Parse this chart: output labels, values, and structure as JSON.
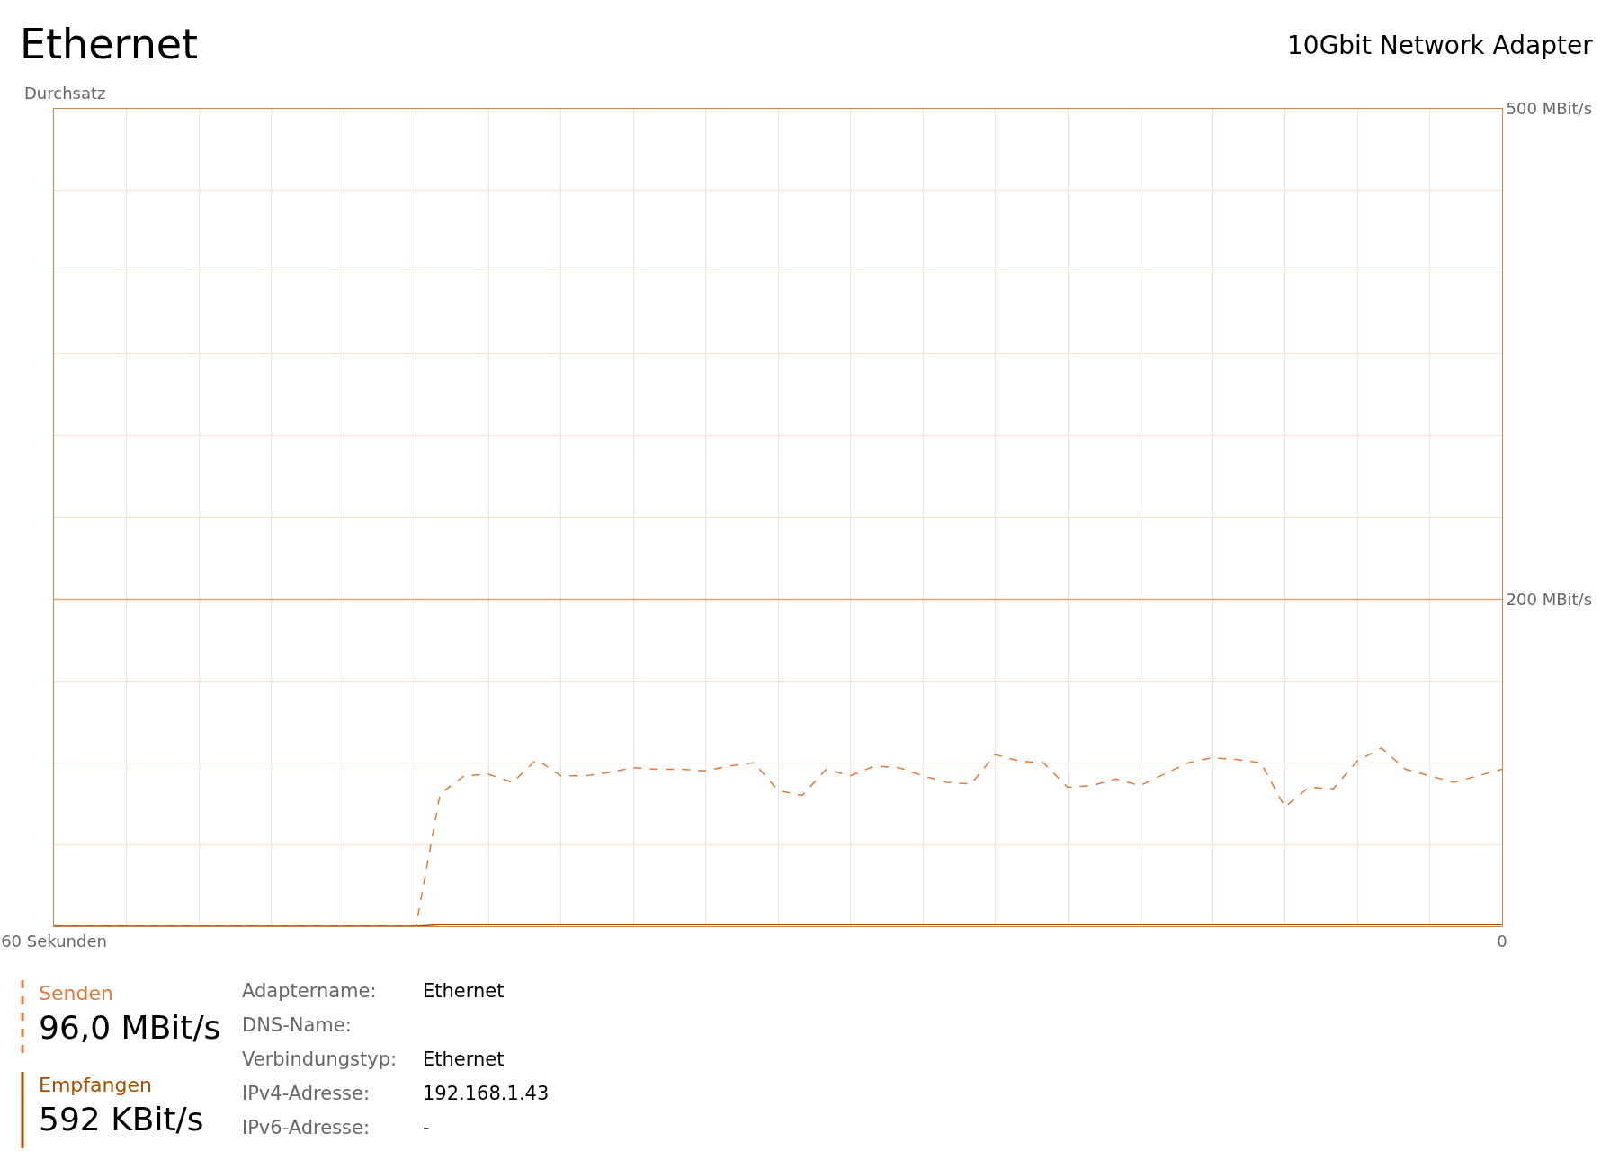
{
  "chart_data": {
    "type": "line",
    "title": "Ethernet",
    "subtitle": "10Gbit Network Adapter",
    "ylabel": "Durchsatz",
    "x": [
      60,
      59,
      58,
      57,
      56,
      55,
      54,
      53,
      52,
      51,
      50,
      49,
      48,
      47,
      46,
      45,
      44,
      43,
      42,
      41,
      40,
      39,
      38,
      37,
      36,
      35,
      34,
      33,
      32,
      31,
      30,
      29,
      28,
      27,
      26,
      25,
      24,
      23,
      22,
      21,
      20,
      19,
      18,
      17,
      16,
      15,
      14,
      13,
      12,
      11,
      10,
      9,
      8,
      7,
      6,
      5,
      4,
      3,
      2,
      1,
      0
    ],
    "series": [
      {
        "name": "Senden",
        "color": "#e07a3c",
        "line_style": "dashed",
        "values": [
          0,
          0,
          0,
          0,
          0,
          0,
          0,
          0,
          0,
          0,
          0,
          0,
          0,
          0,
          0,
          0,
          81,
          92,
          93,
          88,
          102,
          92,
          92,
          94,
          97,
          96,
          96,
          95,
          98,
          100,
          83,
          80,
          96,
          92,
          98,
          97,
          92,
          88,
          87,
          105,
          101,
          100,
          85,
          86,
          90,
          86,
          93,
          100,
          103,
          102,
          100,
          73,
          85,
          84,
          101,
          109,
          96,
          92,
          88,
          92,
          96
        ]
      },
      {
        "name": "Empfangen",
        "color": "#a74f01",
        "line_style": "solid",
        "values": [
          0,
          0,
          0,
          0,
          0,
          0,
          0,
          0,
          0,
          0,
          0,
          0,
          0,
          0,
          0,
          0,
          1,
          1,
          1,
          1,
          1,
          1,
          1,
          1,
          1,
          1,
          1,
          1,
          1,
          1,
          1,
          1,
          1,
          1,
          1,
          1,
          1,
          1,
          1,
          1,
          1,
          1,
          1,
          1,
          1,
          1,
          1,
          1,
          1,
          1,
          1,
          1,
          1,
          1,
          1,
          1,
          1,
          1,
          1,
          1,
          1
        ]
      }
    ],
    "xlim": [
      60,
      0
    ],
    "xticks": [
      {
        "value": 60,
        "label": "60 Sekunden"
      },
      {
        "value": 57,
        "label": null
      },
      {
        "value": 54,
        "label": null
      },
      {
        "value": 51,
        "label": null
      },
      {
        "value": 48,
        "label": null
      },
      {
        "value": 45,
        "label": null
      },
      {
        "value": 42,
        "label": null
      },
      {
        "value": 39,
        "label": null
      },
      {
        "value": 36,
        "label": null
      },
      {
        "value": 33,
        "label": null
      },
      {
        "value": 30,
        "label": null
      },
      {
        "value": 27,
        "label": null
      },
      {
        "value": 24,
        "label": null
      },
      {
        "value": 21,
        "label": null
      },
      {
        "value": 18,
        "label": null
      },
      {
        "value": 15,
        "label": null
      },
      {
        "value": 12,
        "label": null
      },
      {
        "value": 9,
        "label": null
      },
      {
        "value": 6,
        "label": null
      },
      {
        "value": 3,
        "label": null
      },
      {
        "value": 0,
        "label": "0"
      }
    ],
    "ylim": [
      0,
      500
    ],
    "yticks": [
      {
        "value": 0,
        "label": null
      },
      {
        "value": 50,
        "label": null
      },
      {
        "value": 100,
        "label": null
      },
      {
        "value": 150,
        "label": null
      },
      {
        "value": 200,
        "label": "200 MBit/s"
      },
      {
        "value": 250,
        "label": null
      },
      {
        "value": 300,
        "label": null
      },
      {
        "value": 350,
        "label": null
      },
      {
        "value": 400,
        "label": null
      },
      {
        "value": 450,
        "label": null
      },
      {
        "value": 500,
        "label": "500 MBit/s"
      }
    ],
    "ref_lines": [
      {
        "axis": "y",
        "value": 200,
        "color": "#d9a47a"
      }
    ],
    "grid": true,
    "marker": "none",
    "legend": "bottom left",
    "annotations": [
      "96,0 MBit/s",
      "592 KBit/s",
      "Adaptername:\tEthernet",
      "DNS-Name:",
      "Verbindungstyp:\tEthernet",
      "IPv4-Adresse:\t192.168.1.43",
      "IPv6-Adresse:\t-"
    ]
  }
}
